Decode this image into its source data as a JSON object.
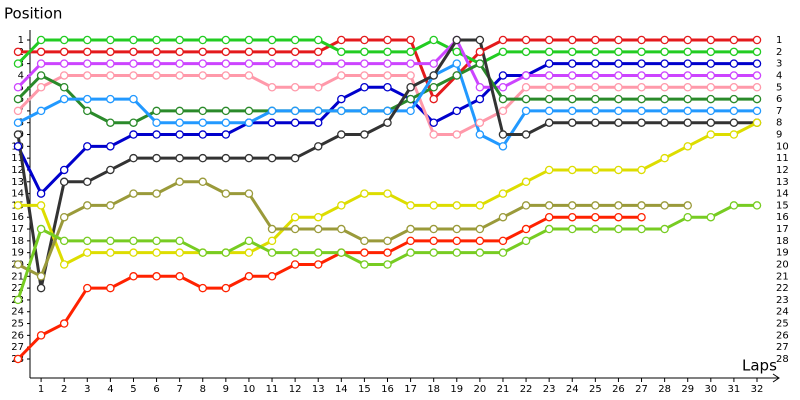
{
  "chart_data": {
    "type": "line",
    "y_axis_title": "Position",
    "x_axis_title": "Laps",
    "x": [
      0,
      1,
      2,
      3,
      4,
      5,
      6,
      7,
      8,
      9,
      10,
      11,
      12,
      13,
      14,
      15,
      16,
      17,
      18,
      19,
      20,
      21,
      22,
      23,
      24,
      25,
      26,
      27,
      28,
      29,
      30,
      31,
      32
    ],
    "xlim": [
      0,
      32
    ],
    "xticks": [
      1,
      2,
      3,
      4,
      5,
      6,
      7,
      8,
      9,
      10,
      11,
      12,
      13,
      14,
      15,
      16,
      17,
      18,
      19,
      20,
      21,
      22,
      23,
      24,
      25,
      26,
      27,
      28,
      29,
      30,
      31,
      32
    ],
    "ylim": [
      28,
      1
    ],
    "yticks": [
      1,
      2,
      3,
      4,
      5,
      6,
      7,
      8,
      9,
      10,
      11,
      12,
      13,
      14,
      15,
      16,
      17,
      18,
      19,
      20,
      21,
      22,
      23,
      24,
      25,
      26,
      27,
      28
    ],
    "series": [
      {
        "color": "#e41a1c",
        "values": [
          2,
          2,
          2,
          2,
          2,
          2,
          2,
          2,
          2,
          2,
          2,
          2,
          2,
          2,
          1,
          1,
          1,
          1,
          6,
          4,
          2,
          1,
          1,
          1,
          1,
          1,
          1,
          1,
          1,
          1,
          1,
          1,
          1
        ]
      },
      {
        "color": "#22cc22",
        "values": [
          3,
          1,
          1,
          1,
          1,
          1,
          1,
          1,
          1,
          1,
          1,
          1,
          1,
          1,
          2,
          2,
          2,
          2,
          1,
          2,
          3,
          2,
          2,
          2,
          2,
          2,
          2,
          2,
          2,
          2,
          2,
          2,
          2
        ]
      },
      {
        "color": "#0000cc",
        "values": [
          10,
          14,
          12,
          10,
          10,
          9,
          9,
          9,
          9,
          9,
          8,
          8,
          8,
          8,
          6,
          5,
          5,
          6,
          8,
          7,
          6,
          4,
          4,
          3,
          3,
          3,
          3,
          3,
          3,
          3,
          3,
          3,
          3
        ]
      },
      {
        "color": "#cc44ff",
        "values": [
          5,
          3,
          3,
          3,
          3,
          3,
          3,
          3,
          3,
          3,
          3,
          3,
          3,
          3,
          3,
          3,
          3,
          3,
          3,
          1,
          5,
          5,
          4,
          4,
          4,
          4,
          4,
          4,
          4,
          4,
          4,
          4,
          4
        ]
      },
      {
        "color": "#ff99aa",
        "values": [
          7,
          5,
          4,
          4,
          4,
          4,
          4,
          4,
          4,
          4,
          4,
          5,
          5,
          5,
          4,
          4,
          4,
          4,
          9,
          9,
          8,
          7,
          5,
          5,
          5,
          5,
          5,
          5,
          5,
          5,
          5,
          5,
          5
        ]
      },
      {
        "color": "#2a8a2a",
        "values": [
          6,
          4,
          5,
          7,
          8,
          8,
          7,
          7,
          7,
          7,
          7,
          7,
          7,
          7,
          7,
          7,
          7,
          6,
          5,
          4,
          3,
          6,
          6,
          6,
          6,
          6,
          6,
          6,
          6,
          6,
          6,
          6,
          6
        ]
      },
      {
        "color": "#2299ff",
        "values": [
          8,
          7,
          6,
          6,
          6,
          6,
          8,
          8,
          8,
          8,
          8,
          7,
          7,
          7,
          7,
          7,
          7,
          7,
          4,
          3,
          9,
          10,
          7,
          7,
          7,
          7,
          7,
          7,
          7,
          7,
          7,
          7,
          7
        ]
      },
      {
        "color": "#333333",
        "values": [
          9,
          22,
          13,
          13,
          12,
          11,
          11,
          11,
          11,
          11,
          11,
          11,
          11,
          10,
          9,
          9,
          8,
          5,
          4,
          1,
          1,
          9,
          9,
          8,
          8,
          8,
          8,
          8,
          8,
          8,
          8,
          8,
          8
        ]
      },
      {
        "color": "#dddd00",
        "values": [
          15,
          15,
          20,
          19,
          19,
          19,
          19,
          19,
          19,
          19,
          19,
          18,
          16,
          16,
          15,
          14,
          14,
          15,
          15,
          15,
          15,
          14,
          13,
          12,
          12,
          12,
          12,
          12,
          11,
          10,
          9,
          9,
          8
        ]
      },
      {
        "color": "#9a9a3a",
        "values": [
          20,
          21,
          16,
          15,
          15,
          14,
          14,
          13,
          13,
          14,
          14,
          17,
          17,
          17,
          17,
          18,
          18,
          17,
          17,
          17,
          17,
          16,
          15,
          15,
          15,
          15,
          15,
          15,
          15,
          15,
          null,
          null,
          null
        ]
      },
      {
        "color": "#ff2200",
        "values": [
          28,
          26,
          25,
          22,
          22,
          21,
          21,
          21,
          22,
          22,
          21,
          21,
          20,
          20,
          19,
          19,
          19,
          18,
          18,
          18,
          18,
          18,
          17,
          16,
          16,
          16,
          16,
          16,
          null,
          null,
          null,
          null,
          null
        ]
      },
      {
        "color": "#77cc22",
        "values": [
          23,
          17,
          18,
          18,
          18,
          18,
          18,
          18,
          19,
          19,
          18,
          19,
          19,
          19,
          19,
          20,
          20,
          19,
          19,
          19,
          19,
          19,
          18,
          17,
          17,
          17,
          17,
          17,
          17,
          16,
          16,
          15,
          15
        ]
      }
    ]
  }
}
